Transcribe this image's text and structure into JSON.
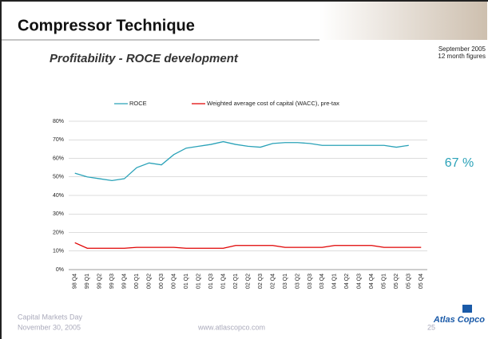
{
  "slide": {
    "title": "Compressor Technique",
    "subtitle": "Profitability - ROCE development",
    "date": "September 2005",
    "period": "12 month figures",
    "footer": {
      "event": "Capital Markets Day",
      "event_date": "November 30, 2005",
      "website": "www.atlascopco.com",
      "page": "25",
      "logo": "Atlas Copco"
    }
  },
  "chart_data": {
    "type": "line",
    "categories": [
      "98 Q4",
      "99 Q1",
      "99 Q2",
      "99 Q3",
      "99 Q4",
      "00 Q1",
      "00 Q2",
      "00 Q3",
      "00 Q4",
      "01 Q1",
      "01 Q2",
      "01 Q3",
      "01 Q4",
      "02 Q1",
      "02 Q2",
      "02 Q3",
      "02 Q4",
      "03 Q1",
      "03 Q2",
      "03 Q3",
      "03 Q4",
      "04 Q1",
      "04 Q2",
      "04 Q3",
      "04 Q4",
      "05 Q1",
      "05 Q2",
      "05 Q3",
      "05 Q4"
    ],
    "series": [
      {
        "name": "ROCE",
        "color": "#2aa2b8",
        "values": [
          52,
          50,
          49,
          48,
          49,
          55,
          57.5,
          56.5,
          62,
          65.5,
          66.5,
          67.5,
          69,
          67.5,
          66.5,
          66,
          68,
          68.5,
          68.5,
          68,
          67,
          67,
          67,
          67,
          67,
          67,
          66,
          67,
          null
        ]
      },
      {
        "name": "Weighted average cost of capital (WACC), pre-tax",
        "color": "#e00000",
        "values": [
          14.5,
          11.5,
          11.5,
          11.5,
          11.5,
          12,
          12,
          12,
          12,
          11.5,
          11.5,
          11.5,
          11.5,
          13,
          13,
          13,
          13,
          12,
          12,
          12,
          12,
          13,
          13,
          13,
          13,
          12,
          12,
          12,
          12
        ]
      }
    ],
    "ylim": [
      0,
      80
    ],
    "yticks": [
      {
        "value": 0,
        "label": "0%"
      },
      {
        "value": 10,
        "label": "10%"
      },
      {
        "value": 20,
        "label": "20%"
      },
      {
        "value": 30,
        "label": "30%"
      },
      {
        "value": 40,
        "label": "40%"
      },
      {
        "value": 50,
        "label": "50%"
      },
      {
        "value": 60,
        "label": "60%"
      },
      {
        "value": 70,
        "label": "70%"
      },
      {
        "value": 80,
        "label": "80%"
      }
    ],
    "grid": true,
    "annotation": "67 %"
  }
}
